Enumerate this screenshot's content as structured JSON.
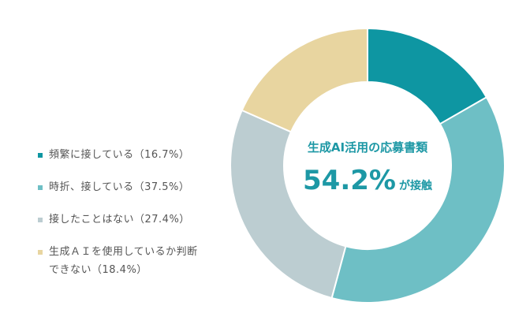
{
  "chart_data": {
    "type": "pie",
    "title": "",
    "categories": [
      "頻繁に接している（16.7%）",
      "時折、接している（37.5%）",
      "接したことはない（27.4%）",
      "生成ＡＩを使用しているか判断できない（18.4%）"
    ],
    "values": [
      16.7,
      37.5,
      27.4,
      18.4
    ],
    "colors": [
      "#0e96a2",
      "#6ebfc5",
      "#bccdd1",
      "#e8d5a0"
    ],
    "legend_placement": "left",
    "center_label": {
      "title": "生成AI活用の応募書類",
      "value": "54.2%",
      "suffix": "が接触"
    }
  },
  "legend": {
    "items": [
      {
        "label_line1": "頻繁に接している（16.7%）",
        "label_line2": ""
      },
      {
        "label_line1": "時折、接している（37.5%）",
        "label_line2": ""
      },
      {
        "label_line1": "接したことはない（27.4%）",
        "label_line2": ""
      },
      {
        "label_line1": "生成ＡＩを使用しているか判断",
        "label_line2": "できない（18.4%）"
      }
    ]
  }
}
